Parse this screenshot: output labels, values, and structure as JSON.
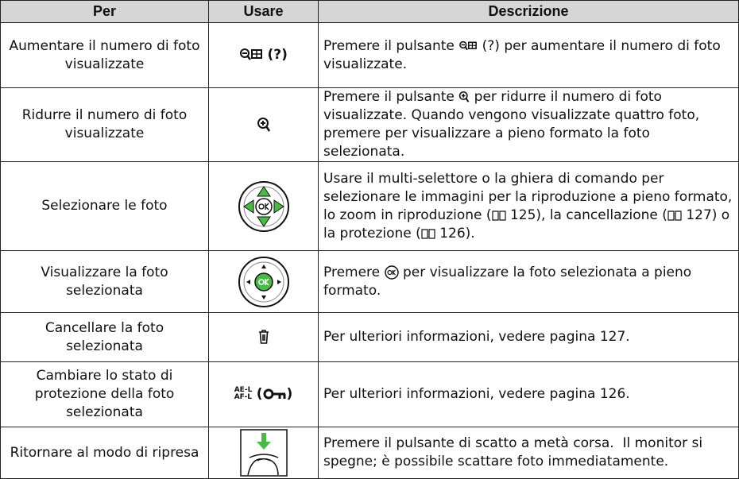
{
  "table": {
    "headers": [
      "Per",
      "Usare",
      "Descrizione"
    ],
    "rows": [
      {
        "per": "Aumentare il numero di foto visualizzate",
        "usare": [
          "(?)"
        ],
        "description": [
          "Premere il pulsante",
          "(?) per aumentare il numero di foto visualizzate."
        ]
      },
      {
        "per": "Ridurre il numero di foto visualizzate",
        "usare": [],
        "description": [
          "Premere il pulsante",
          "per ridurre il numero di foto visualizzate. Quando vengono visualizzate quattro foto, premere per visualizzare a pieno formato la foto selezionata."
        ]
      },
      {
        "per": "Selezionare le foto",
        "usare": [],
        "description": [
          "Usare il multi-selettore o la ghiera di comando per selezionare le immagini per la riproduzione a pieno formato, lo zoom in riproduzione (",
          "125), la cancellazione (",
          "127) o la protezione (",
          "126)."
        ]
      },
      {
        "per": "Visualizzare la foto selezionata",
        "usare": [],
        "description": [
          "Premere",
          "per visualizzare la foto selezionata a pieno formato."
        ]
      },
      {
        "per": "Cancellare la foto selezionata",
        "usare": [],
        "description": [
          "Per ulteriori informazioni, vedere pagina 127."
        ]
      },
      {
        "per": "Cambiare lo stato di protezione della foto selezionata",
        "usare": [
          "AE-L",
          "AF-L",
          "(",
          ")"
        ],
        "description": [
          "Per ulteriori informazioni, vedere pagina 126."
        ]
      },
      {
        "per": "Ritornare al modo di ripresa",
        "usare": [],
        "description": [
          "Premere il pulsante di scatto a metà corsa.  Il monitor si spegne; è possibile scattare foto immediatamente."
        ]
      }
    ]
  }
}
